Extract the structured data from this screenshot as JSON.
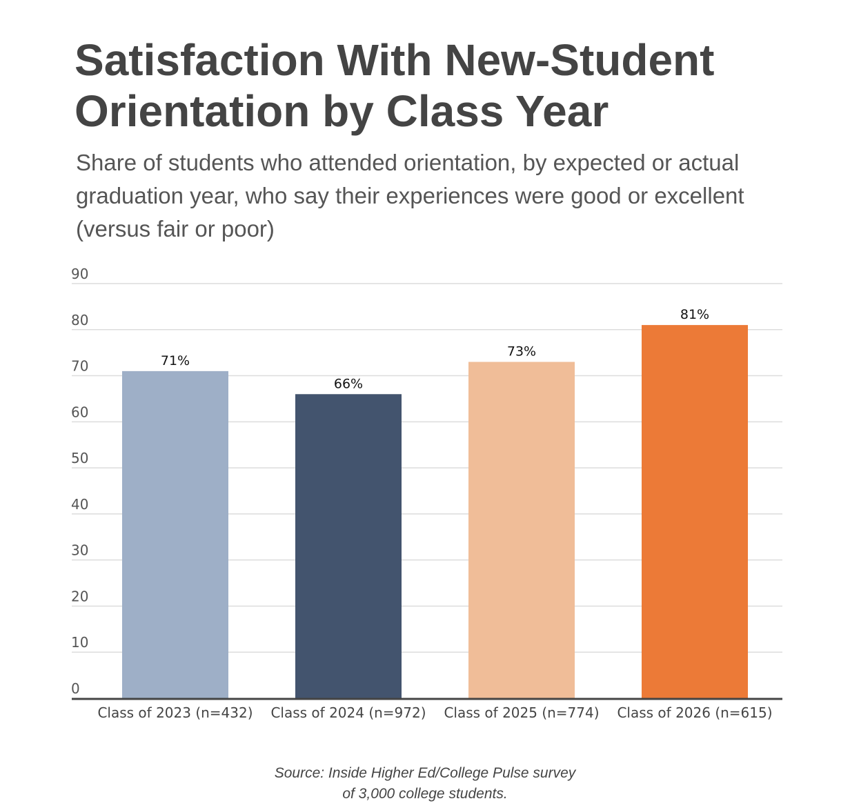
{
  "title": "Satisfaction With New-Student Orientation by Class Year",
  "subtitle": "Share of students who attended orientation, by expected or actual graduation year, who say their experiences were good or excellent (versus fair or poor)",
  "source_line1": "Source: Inside Higher Ed/College Pulse survey",
  "source_line2": "of 3,000 college students.",
  "chart_data": {
    "type": "bar",
    "categories": [
      "Class of 2023 (n=432)",
      "Class of 2024 (n=972)",
      "Class of 2025 (n=774)",
      "Class of 2026 (n=615)"
    ],
    "values": [
      71,
      66,
      73,
      81
    ],
    "value_labels": [
      "71%",
      "66%",
      "73%",
      "81%"
    ],
    "colors": [
      "#9eafc7",
      "#43546e",
      "#f0bd98",
      "#ec7a37"
    ],
    "ylim": [
      0,
      90
    ],
    "yticks": [
      0,
      10,
      20,
      30,
      40,
      50,
      60,
      70,
      80,
      90
    ],
    "grid": true,
    "title": "",
    "xlabel": "",
    "ylabel": ""
  }
}
